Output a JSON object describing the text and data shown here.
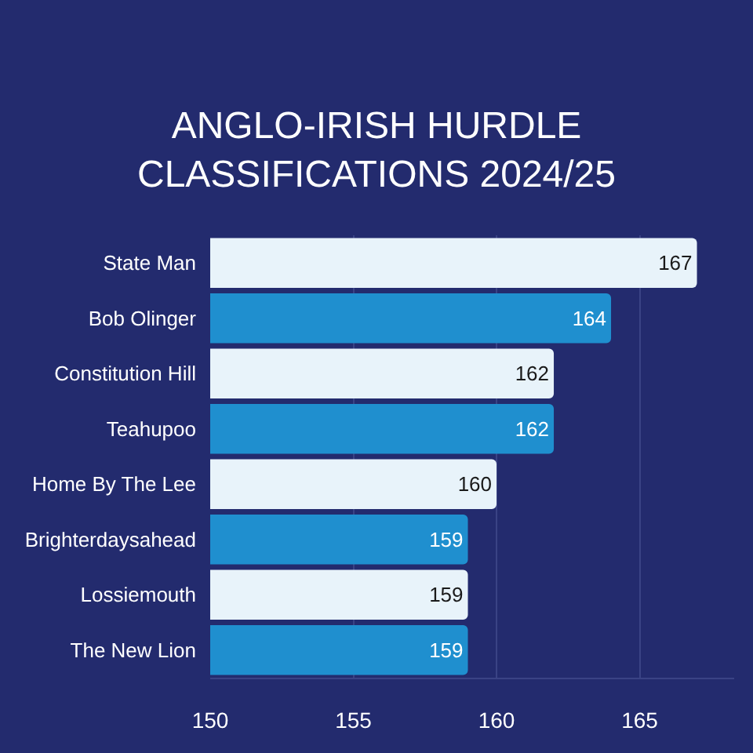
{
  "chart_data": {
    "type": "bar",
    "orientation": "horizontal",
    "title": "ANGLO-IRISH HURDLE\nCLASSIFICATIONS 2024/25",
    "categories": [
      "State Man",
      "Bob Olinger",
      "Constitution Hill",
      "Teahupoo",
      "Home By The Lee",
      "Brighterdaysahead",
      "Lossiemouth",
      "The New Lion"
    ],
    "values": [
      167,
      164,
      162,
      162,
      160,
      159,
      159,
      159
    ],
    "colors": [
      "#e8f3fa",
      "#1f8fcf",
      "#e8f3fa",
      "#1f8fcf",
      "#e8f3fa",
      "#1f8fcf",
      "#e8f3fa",
      "#1f8fcf"
    ],
    "xlim": [
      150,
      168.3
    ],
    "xticks": [
      150,
      155,
      160,
      165
    ],
    "grid": "x",
    "data_labels": true
  }
}
